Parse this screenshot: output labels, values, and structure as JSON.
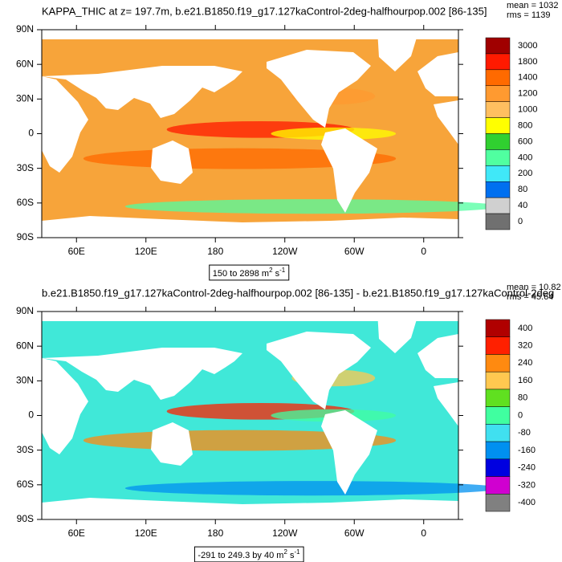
{
  "chart_data": [
    {
      "type": "contour-map",
      "title": "KAPPA_THIC at z= 197.7m, b.e21.B1850.f19_g17.127kaControl-2deg-halfhourpop.002 [86-135]",
      "mean_label": "mean = 1032",
      "rms_label": "rms = 1139",
      "subtitle": {
        "prefix": "150 to 2898 m",
        "sup1": "2",
        "mid": " s",
        "sup2": "-1"
      },
      "xlim": [
        30,
        390
      ],
      "ylim": [
        -90,
        90
      ],
      "xticks": [
        {
          "value": 60,
          "label": "60E"
        },
        {
          "value": 120,
          "label": "120E"
        },
        180,
        {
          "value": -120,
          "label": "120W"
        },
        {
          "value": -60,
          "label": "60W"
        },
        0
      ],
      "yticks": [
        {
          "value": 90,
          "label": "90N"
        },
        {
          "value": 60,
          "label": "60N"
        },
        {
          "value": 30,
          "label": "30N"
        },
        0,
        {
          "value": -30,
          "label": "30S"
        },
        {
          "value": -60,
          "label": "60S"
        },
        {
          "value": -90,
          "label": "90S"
        }
      ],
      "ocean_color": "#f7a43a",
      "colorbar_labels": [
        3000,
        1800,
        1400,
        1200,
        1000,
        800,
        600,
        400,
        200,
        80,
        40,
        0
      ],
      "colorbar_colors": [
        "#a00000",
        "#ff1a00",
        "#ff6a00",
        "#ff9a30",
        "#ffbf60",
        "#ffff00",
        "#30d030",
        "#50ffa0",
        "#40e8f8",
        "#0070f0",
        "#d0d0d0",
        "#707070"
      ]
    },
    {
      "type": "contour-map",
      "title": "b.e21.B1850.f19_g17.127kaControl-2deg-halfhourpop.002 [86-135] - b.e21.B1850.f19_g17.127kaControl-2deg",
      "mean_label": "mean = 10.82",
      "rms_label": "rms = 45.64",
      "subtitle": {
        "prefix": "-291 to 249.3 by 40 m",
        "sup1": "2",
        "mid": " s",
        "sup2": "-1"
      },
      "xlim": [
        30,
        390
      ],
      "ylim": [
        -90,
        90
      ],
      "xticks": [
        {
          "value": 60,
          "label": "60E"
        },
        {
          "value": 120,
          "label": "120E"
        },
        180,
        {
          "value": -120,
          "label": "120W"
        },
        {
          "value": -60,
          "label": "60W"
        },
        0
      ],
      "yticks": [
        {
          "value": 90,
          "label": "90N"
        },
        {
          "value": 60,
          "label": "60N"
        },
        {
          "value": 30,
          "label": "30N"
        },
        0,
        {
          "value": -30,
          "label": "30S"
        },
        {
          "value": -60,
          "label": "60S"
        },
        {
          "value": -90,
          "label": "90S"
        }
      ],
      "ocean_color": "#40e8d8",
      "colorbar_labels": [
        400,
        320,
        240,
        160,
        80,
        0,
        -80,
        -160,
        -240,
        -320,
        -400
      ],
      "colorbar_colors": [
        "#b00000",
        "#ff2000",
        "#ff8a10",
        "#ffc850",
        "#60e020",
        "#40ffa0",
        "#40e0f0",
        "#0090f0",
        "#0000e0",
        "#d000d0",
        "#808080"
      ]
    }
  ]
}
